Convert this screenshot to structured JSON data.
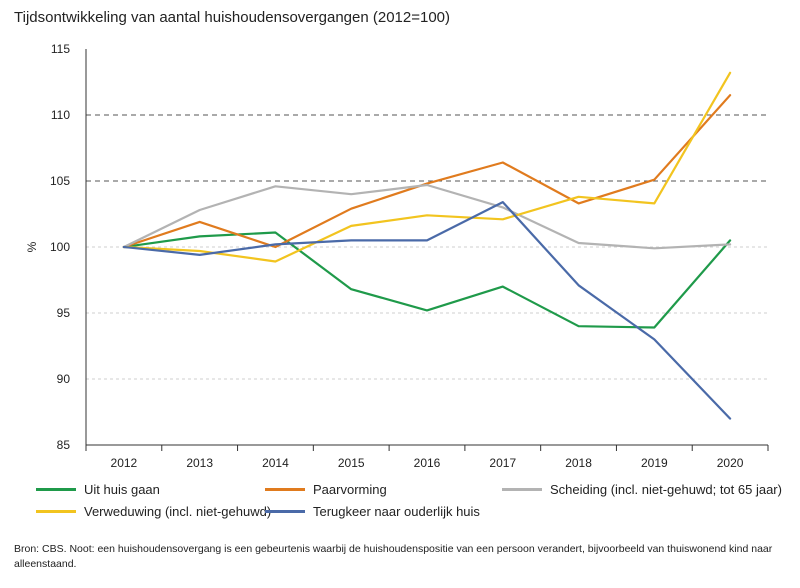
{
  "chart_data": {
    "type": "line",
    "title": "Tijdsontwikkeling van aantal huishoudensovergangen (2012=100)",
    "ylabel": "%",
    "xlabel": "",
    "ylim": [
      85,
      115
    ],
    "yticks": [
      85,
      90,
      95,
      100,
      105,
      110,
      115
    ],
    "categories": [
      "2012",
      "2013",
      "2014",
      "2015",
      "2016",
      "2017",
      "2018",
      "2019",
      "2020"
    ],
    "dashed_gridlines": [
      105,
      110
    ],
    "dotted_gridlines": [
      90,
      95,
      100
    ],
    "series": [
      {
        "name": "Uit huis gaan",
        "color": "#1f9a4a",
        "values": [
          100,
          100.8,
          101.1,
          96.8,
          95.2,
          97.0,
          94.0,
          93.9,
          100.5
        ]
      },
      {
        "name": "Paarvorming",
        "color": "#e07b1e",
        "values": [
          100,
          101.9,
          100.0,
          102.9,
          104.8,
          106.4,
          103.3,
          105.1,
          111.5
        ]
      },
      {
        "name": "Scheiding (incl. niet-gehuwd; tot 65 jaar)",
        "color": "#b3b3b3",
        "values": [
          100,
          102.8,
          104.6,
          104.0,
          104.7,
          103.0,
          100.3,
          99.9,
          100.2
        ]
      },
      {
        "name": "Verweduwing (incl. niet-gehuwd)",
        "color": "#f2c41f",
        "values": [
          100,
          99.7,
          98.9,
          101.6,
          102.4,
          102.1,
          103.8,
          103.3,
          113.2
        ]
      },
      {
        "name": "Terugkeer naar ouderlijk huis",
        "color": "#4a6aa8",
        "values": [
          100,
          99.4,
          100.2,
          100.5,
          100.5,
          103.4,
          97.1,
          93.0,
          87.0
        ]
      }
    ],
    "legend_position": "bottom"
  },
  "source_note": "Bron: CBS. Noot: een huishoudensovergang is een gebeurtenis waarbij de huishoudenspositie van een persoon verandert, bijvoorbeeld van thuiswonend kind naar alleenstaand."
}
